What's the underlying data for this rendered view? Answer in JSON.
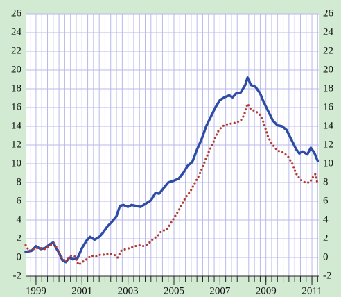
{
  "chart_data": {
    "type": "line",
    "xlim": [
      1998.55,
      2011.3
    ],
    "xticks": [
      1999,
      2001,
      2003,
      2005,
      2007,
      2009,
      2011
    ],
    "xgrid_interval": 0.25,
    "ylim": [
      -2,
      26
    ],
    "yticks": [
      -2,
      0,
      2,
      4,
      6,
      8,
      10,
      12,
      14,
      16,
      18,
      20,
      22,
      24,
      26
    ],
    "y2lim": [
      -2,
      26
    ],
    "y2ticks": [
      -2,
      0,
      2,
      4,
      6,
      8,
      10,
      12,
      14,
      16,
      18,
      20,
      22,
      24,
      26
    ],
    "grid": true,
    "series": [
      {
        "color": "#2e4ca6",
        "style": "solid",
        "x": [
          1998.55,
          1998.8,
          1999.0,
          1999.2,
          1999.4,
          1999.6,
          1999.75,
          1999.9,
          2000.0,
          2000.15,
          2000.3,
          2000.45,
          2000.6,
          2000.8,
          2001.0,
          2001.2,
          2001.35,
          2001.55,
          2001.75,
          2001.9,
          2002.1,
          2002.3,
          2002.5,
          2002.65,
          2002.8,
          2003.0,
          2003.15,
          2003.35,
          2003.55,
          2003.75,
          2004.0,
          2004.2,
          2004.35,
          2004.55,
          2004.75,
          2005.0,
          2005.2,
          2005.4,
          2005.6,
          2005.8,
          2006.0,
          2006.2,
          2006.4,
          2006.6,
          2006.8,
          2007.0,
          2007.2,
          2007.4,
          2007.55,
          2007.7,
          2007.9,
          2008.1,
          2008.2,
          2008.35,
          2008.55,
          2008.75,
          2008.9,
          2009.1,
          2009.3,
          2009.5,
          2009.7,
          2009.9,
          2010.1,
          2010.3,
          2010.45,
          2010.6,
          2010.8,
          2010.95,
          2011.1,
          2011.25
        ],
        "values": [
          0.6,
          0.7,
          1.2,
          0.9,
          1.0,
          1.4,
          1.6,
          0.9,
          0.5,
          -0.3,
          -0.5,
          0.0,
          -0.2,
          -0.1,
          1.0,
          1.8,
          2.2,
          1.9,
          2.2,
          2.6,
          3.3,
          3.8,
          4.4,
          5.5,
          5.6,
          5.4,
          5.6,
          5.5,
          5.4,
          5.7,
          6.1,
          6.9,
          6.8,
          7.4,
          8.0,
          8.2,
          8.4,
          9.0,
          9.8,
          10.2,
          11.5,
          12.6,
          14.0,
          15.0,
          16.0,
          16.8,
          17.1,
          17.3,
          17.1,
          17.5,
          17.6,
          18.4,
          19.2,
          18.4,
          18.2,
          17.5,
          16.6,
          15.6,
          14.6,
          14.1,
          14.0,
          13.6,
          12.6,
          11.6,
          11.1,
          11.3,
          11.0,
          11.7,
          11.2,
          10.3
        ]
      },
      {
        "color": "#b23a2e",
        "style": "dotted",
        "x": [
          1998.55,
          1998.7,
          1999.0,
          1999.2,
          1999.4,
          1999.6,
          1999.8,
          1999.95,
          2000.1,
          2000.3,
          2000.5,
          2000.7,
          2000.85,
          2001.0,
          2001.2,
          2001.4,
          2001.6,
          2001.8,
          2002.0,
          2002.2,
          2002.4,
          2002.55,
          2002.7,
          2002.9,
          2003.1,
          2003.3,
          2003.5,
          2003.7,
          2003.9,
          2004.1,
          2004.3,
          2004.45,
          2004.7,
          2004.9,
          2005.1,
          2005.3,
          2005.5,
          2005.7,
          2005.9,
          2006.1,
          2006.3,
          2006.5,
          2006.7,
          2006.9,
          2007.1,
          2007.3,
          2007.5,
          2007.7,
          2007.9,
          2008.05,
          2008.2,
          2008.35,
          2008.55,
          2008.75,
          2008.9,
          2009.1,
          2009.3,
          2009.5,
          2009.75,
          2009.95,
          2010.15,
          2010.3,
          2010.5,
          2010.7,
          2010.9,
          2011.05,
          2011.15,
          2011.25
        ],
        "values": [
          1.3,
          0.7,
          1.0,
          1.0,
          0.9,
          1.3,
          1.5,
          0.8,
          0.1,
          -0.5,
          0.2,
          0.1,
          -0.8,
          -0.5,
          -0.2,
          0.2,
          0.1,
          0.3,
          0.3,
          0.4,
          0.3,
          0.0,
          0.7,
          0.9,
          1.0,
          1.2,
          1.3,
          1.2,
          1.5,
          2.0,
          2.3,
          2.8,
          3.0,
          3.8,
          4.6,
          5.4,
          6.4,
          7.0,
          7.9,
          8.8,
          10.0,
          11.2,
          12.2,
          13.4,
          14.0,
          14.2,
          14.3,
          14.4,
          14.6,
          15.2,
          16.4,
          15.8,
          15.6,
          15.2,
          14.4,
          12.8,
          12.0,
          11.4,
          11.2,
          10.8,
          10.0,
          9.0,
          8.3,
          8.0,
          8.0,
          8.6,
          8.9,
          7.8
        ]
      }
    ]
  }
}
